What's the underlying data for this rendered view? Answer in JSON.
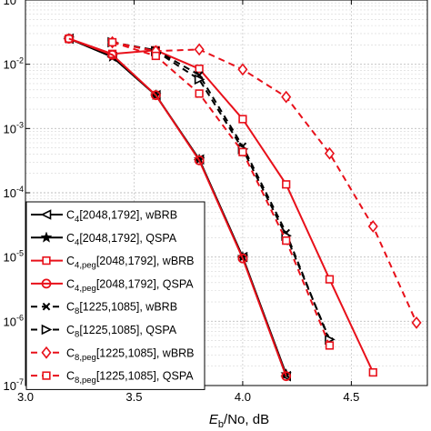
{
  "chart_data": {
    "type": "line",
    "x_label_main": "E",
    "x_label_sub": "b",
    "x_label_rest": "/No, dB",
    "ylabel": "",
    "xlim": [
      3.0,
      4.85
    ],
    "ylim_exp": [
      -7,
      -1
    ],
    "y_scale": "log",
    "grid": true,
    "legend_position": "bottom-left",
    "x_ticks": [
      {
        "value": 3.0,
        "label": "3.0"
      },
      {
        "value": 3.5,
        "label": "3.5"
      },
      {
        "value": 4.0,
        "label": "4.0"
      },
      {
        "value": 4.5,
        "label": "4.5"
      }
    ],
    "y_ticks": [
      {
        "exp": -1,
        "label": "-1"
      },
      {
        "exp": -2,
        "label": "-2"
      },
      {
        "exp": -3,
        "label": "-3"
      },
      {
        "exp": -4,
        "label": "-4"
      },
      {
        "exp": -5,
        "label": "-5"
      },
      {
        "exp": -6,
        "label": "-6"
      },
      {
        "exp": -7,
        "label": "-7"
      }
    ],
    "series": [
      {
        "name_main": "C",
        "name_sub": "4",
        "name_rest": "[2048,1792], wBRB",
        "color": "#000000",
        "dash": "solid",
        "marker": "tri-left",
        "points": [
          [
            3.2,
            0.025
          ],
          [
            3.4,
            0.013
          ],
          [
            3.6,
            0.0033
          ],
          [
            3.8,
            0.00033
          ],
          [
            4.0,
            1e-05
          ],
          [
            4.2,
            1.4e-07
          ]
        ]
      },
      {
        "name_main": "C",
        "name_sub": "4",
        "name_rest": "[2048,1792], QSPA",
        "color": "#000000",
        "dash": "solid",
        "marker": "star",
        "points": [
          [
            3.2,
            0.025
          ],
          [
            3.4,
            0.013
          ],
          [
            3.6,
            0.0033
          ],
          [
            3.8,
            0.00033
          ],
          [
            4.0,
            1e-05
          ],
          [
            4.2,
            1.5e-07
          ]
        ]
      },
      {
        "name_main": "C",
        "name_sub": "4,peg",
        "name_rest": "[2048,1792], wBRB",
        "color": "#e8101a",
        "dash": "solid",
        "marker": "square",
        "points": [
          [
            3.2,
            0.025
          ],
          [
            3.4,
            0.0145
          ],
          [
            3.6,
            0.0165
          ],
          [
            3.8,
            0.0085
          ],
          [
            4.0,
            0.0014
          ],
          [
            4.2,
            0.000135
          ],
          [
            4.4,
            4.5e-06
          ],
          [
            4.6,
            1.6e-07
          ]
        ]
      },
      {
        "name_main": "C",
        "name_sub": "4,peg",
        "name_rest": "[2048,1792], QSPA",
        "color": "#e8101a",
        "dash": "solid",
        "marker": "circle",
        "points": [
          [
            3.2,
            0.025
          ],
          [
            3.4,
            0.014
          ],
          [
            3.6,
            0.0033
          ],
          [
            3.8,
            0.00032
          ],
          [
            4.0,
            9.5e-06
          ],
          [
            4.2,
            1.4e-07
          ]
        ]
      },
      {
        "name_main": "C",
        "name_sub": "8",
        "name_rest": "[1225,1085], wBRB",
        "color": "#000000",
        "dash": "dashed",
        "marker": "x",
        "points": [
          [
            3.4,
            0.022
          ],
          [
            3.6,
            0.0165
          ],
          [
            3.8,
            0.0068
          ],
          [
            4.0,
            0.00053
          ],
          [
            4.2,
            2.38e-05
          ],
          [
            4.4,
            4.9e-07
          ]
        ]
      },
      {
        "name_main": "C",
        "name_sub": "8",
        "name_rest": "[1225,1085], QSPA",
        "color": "#000000",
        "dash": "dashed",
        "marker": "tri-right",
        "points": [
          [
            3.4,
            0.022
          ],
          [
            3.6,
            0.016
          ],
          [
            3.8,
            0.0058
          ],
          [
            4.0,
            0.00048
          ],
          [
            4.2,
            2.15e-05
          ],
          [
            4.4,
            5.2e-07
          ]
        ]
      },
      {
        "name_main": "C",
        "name_sub": "8,peg",
        "name_rest": "[1225,1085], wBRB",
        "color": "#e8101a",
        "dash": "dashed",
        "marker": "diamond",
        "points": [
          [
            3.4,
            0.022
          ],
          [
            3.6,
            0.016
          ],
          [
            3.8,
            0.017
          ],
          [
            4.0,
            0.0083
          ],
          [
            4.2,
            0.0031
          ],
          [
            4.4,
            0.00041
          ],
          [
            4.6,
            3e-05
          ],
          [
            4.8,
            9.5e-07
          ]
        ]
      },
      {
        "name_main": "C",
        "name_sub": "8,peg",
        "name_rest": "[1225,1085], QSPA",
        "color": "#e8101a",
        "dash": "dashed",
        "marker": "square",
        "points": [
          [
            3.4,
            0.022
          ],
          [
            3.6,
            0.0135
          ],
          [
            3.8,
            0.0035
          ],
          [
            4.0,
            0.00043
          ],
          [
            4.2,
            1.8e-05
          ],
          [
            4.4,
            4.2e-07
          ]
        ]
      }
    ]
  }
}
